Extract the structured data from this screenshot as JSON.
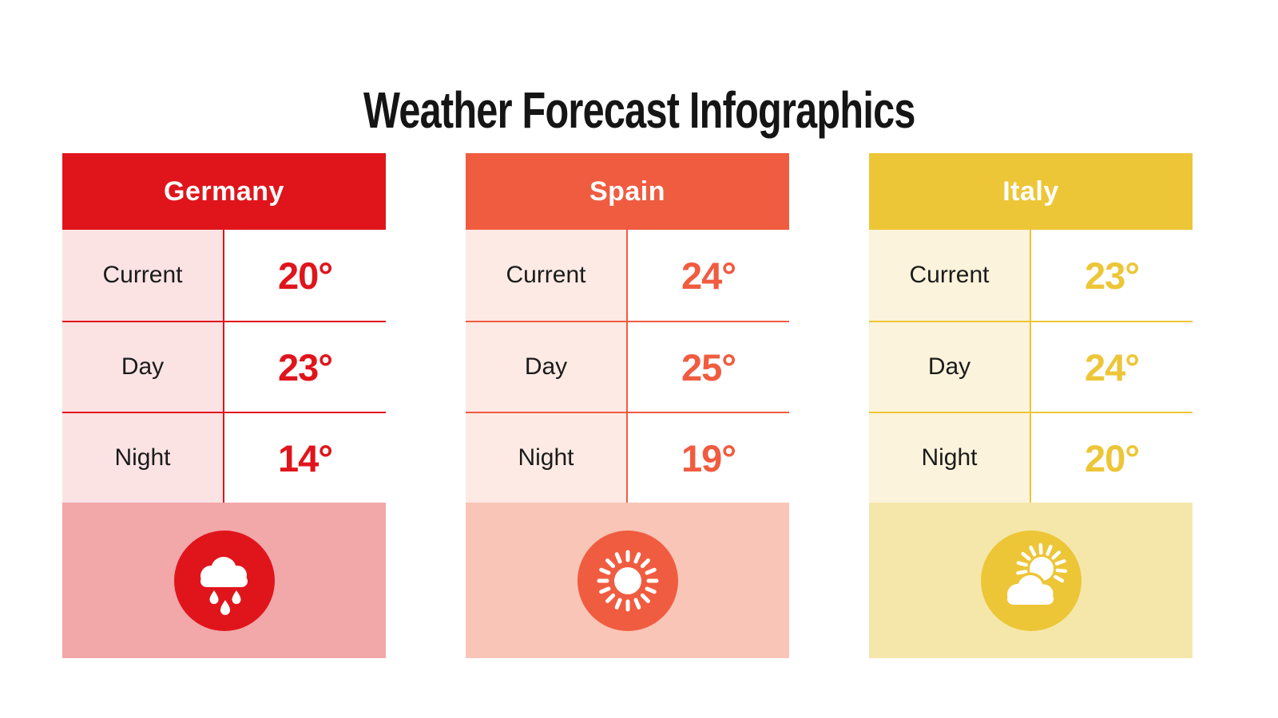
{
  "title": "Weather Forecast Infographics",
  "cards": [
    {
      "country": "Germany",
      "icon": "rain-cloud-icon",
      "rows": [
        {
          "label": "Current",
          "value": "20°"
        },
        {
          "label": "Day",
          "value": "23°"
        },
        {
          "label": "Night",
          "value": "14°"
        }
      ],
      "theme": {
        "accent": "#E0151C",
        "label_bg": "#FBE3E4",
        "footer_bg": "#F2A7A9"
      }
    },
    {
      "country": "Spain",
      "icon": "sun-icon",
      "rows": [
        {
          "label": "Current",
          "value": "24°"
        },
        {
          "label": "Day",
          "value": "25°"
        },
        {
          "label": "Night",
          "value": "19°"
        }
      ],
      "theme": {
        "accent": "#F05C40",
        "label_bg": "#FDEAE4",
        "footer_bg": "#F9C5B7"
      }
    },
    {
      "country": "Italy",
      "icon": "sun-behind-cloud-icon",
      "rows": [
        {
          "label": "Current",
          "value": "23°"
        },
        {
          "label": "Day",
          "value": "24°"
        },
        {
          "label": "Night",
          "value": "20°"
        }
      ],
      "theme": {
        "accent": "#EDC637",
        "label_bg": "#FBF3DB",
        "footer_bg": "#F5E7AA"
      }
    }
  ]
}
